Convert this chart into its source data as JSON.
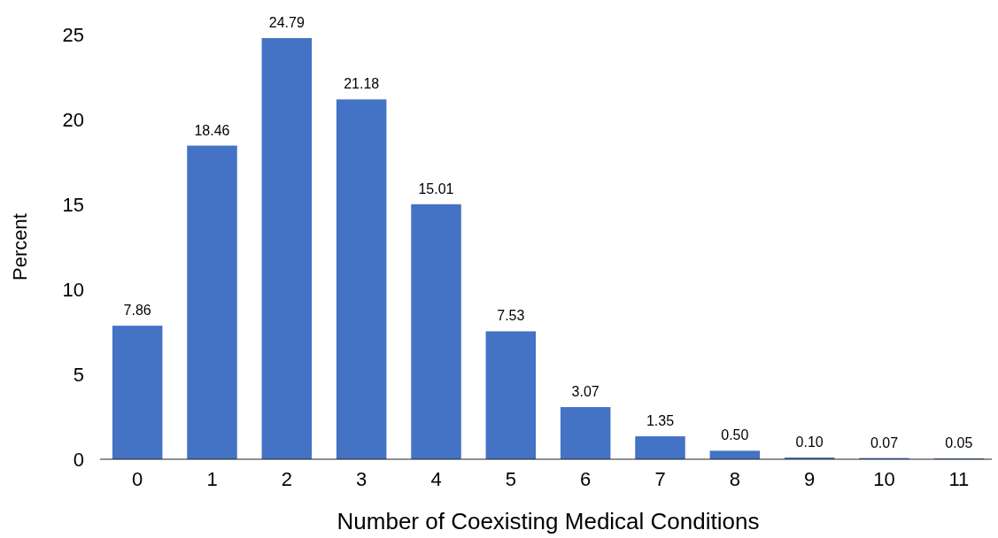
{
  "chart_data": {
    "type": "bar",
    "xlabel": "Number of Coexisting Medical Conditions",
    "ylabel": "Percent",
    "categories": [
      "0",
      "1",
      "2",
      "3",
      "4",
      "5",
      "6",
      "7",
      "8",
      "9",
      "10",
      "11"
    ],
    "values": [
      7.86,
      18.46,
      24.79,
      21.18,
      15.01,
      7.53,
      3.07,
      1.35,
      0.5,
      0.1,
      0.07,
      0.05
    ],
    "value_labels": [
      "7.86",
      "18.46",
      "24.79",
      "21.18",
      "15.01",
      "7.53",
      "3.07",
      "1.35",
      "0.50",
      "0.10",
      "0.07",
      "0.05"
    ],
    "color": "#4472c4",
    "ylim": [
      0,
      25
    ],
    "yticks": [
      0,
      5,
      10,
      15,
      20,
      25
    ]
  }
}
